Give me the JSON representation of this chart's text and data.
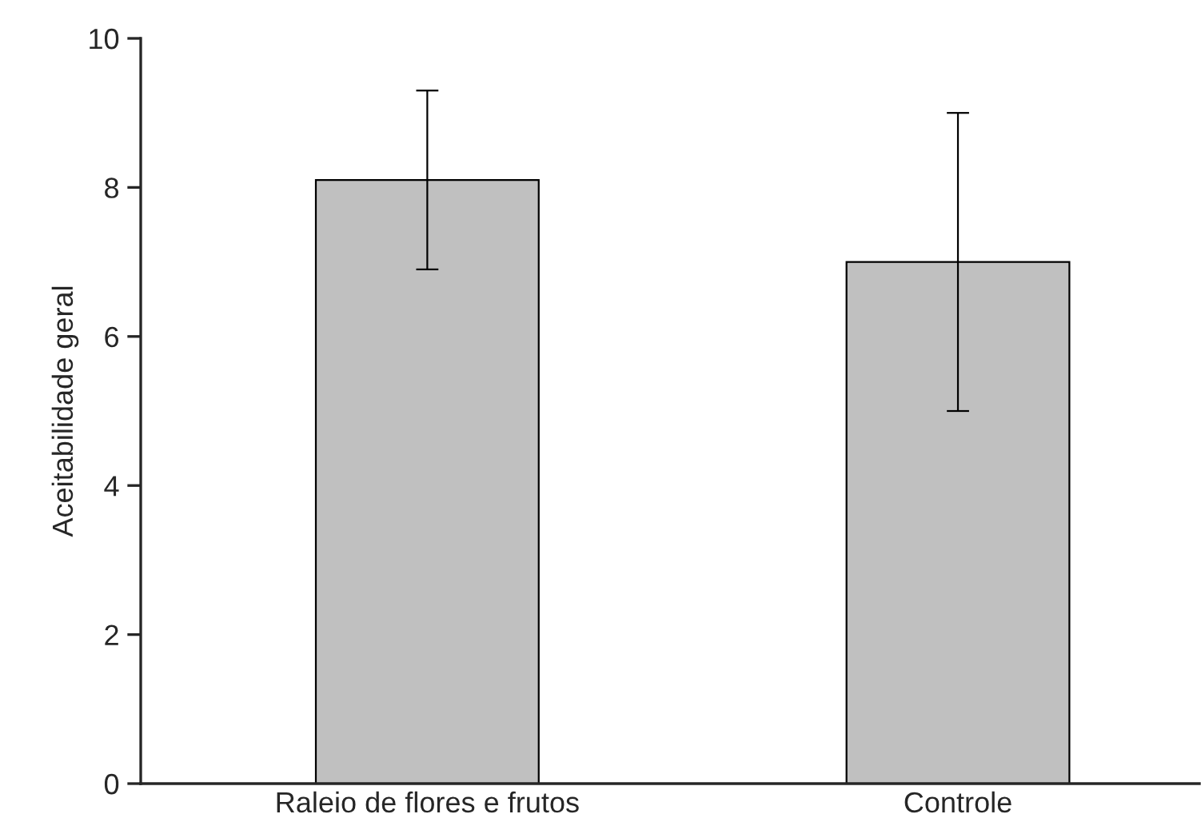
{
  "chart_data": {
    "type": "bar",
    "ylabel": "Aceitabilidade geral",
    "categories": [
      "Raleio de flores e frutos",
      "Controle"
    ],
    "values": [
      8.1,
      7.0
    ],
    "errors": [
      1.2,
      2.0
    ],
    "color": "#c0c0c0",
    "ylim": [
      0,
      10
    ],
    "yticks": [
      0,
      2,
      4,
      6,
      8,
      10
    ],
    "grid": false,
    "legend": false
  }
}
